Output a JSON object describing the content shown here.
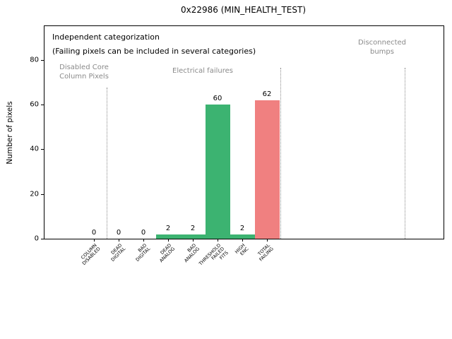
{
  "chart_data": {
    "type": "bar",
    "title": "0x22986 (MIN_HEALTH_TEST)",
    "ylabel": "Number of pixels",
    "xlabel": "",
    "ylim": [
      0,
      95
    ],
    "yticks": [
      0,
      20,
      40,
      60,
      80
    ],
    "grid": false,
    "legend": "none",
    "categories": [
      "COLUMN\nDISABLED",
      "DEAD\nDIGITAL",
      "BAD\nDIGITAL",
      "DEAD\nANALOG",
      "BAD\nANALOG",
      "THRESHOLD\nFAILED\nFITS",
      "HIGH\nENC",
      "TOTAL\nFAILING"
    ],
    "values": [
      0,
      0,
      0,
      2,
      2,
      60,
      2,
      62
    ],
    "bar_value_labels": [
      "0",
      "0",
      "0",
      "2",
      "2",
      "60",
      "2",
      "62"
    ],
    "bar_colors": [
      "#3cb371",
      "#3cb371",
      "#3cb371",
      "#3cb371",
      "#3cb371",
      "#3cb371",
      "#3cb371",
      "#f08080"
    ],
    "colors": {
      "category_pass_green": "#3cb371",
      "total_failing_red": "#f08080",
      "section_label_gray": "#8a8a8a",
      "text_black": "#000000"
    },
    "annotations": [
      {
        "id": "independent-categorization-note",
        "text": "Independent categorization",
        "color": "#000000",
        "size": 11,
        "x": 11,
        "y": 9,
        "align": "left"
      },
      {
        "id": "failing-pixels-note",
        "text": "(Failing pixels can be included in several categories)",
        "color": "#000000",
        "size": 11,
        "x": 11,
        "y": 29,
        "align": "left"
      },
      {
        "id": "section-disabled-core-column-pixels",
        "text": "Disabled Core\nColumn Pixels",
        "color": "#8a8a8a",
        "size": 10,
        "x": 56,
        "y": 52,
        "align": "center"
      },
      {
        "id": "section-electrical-failures",
        "text": "Electrical failures",
        "color": "#8a8a8a",
        "size": 10,
        "x": 224,
        "y": 57,
        "align": "center"
      },
      {
        "id": "section-disconnected-bumps",
        "text": "Disconnected\nbumps",
        "color": "#8a8a8a",
        "size": 10,
        "x": 478,
        "y": 17,
        "align": "center"
      }
    ],
    "section_lines": [
      {
        "id": "divider-disabled-core",
        "x": 88,
        "y_top": 87
      },
      {
        "id": "divider-electrical",
        "x": 334,
        "y_top": 59
      },
      {
        "id": "divider-disconnected-bumps",
        "x": 510,
        "y_top": 59
      }
    ]
  }
}
